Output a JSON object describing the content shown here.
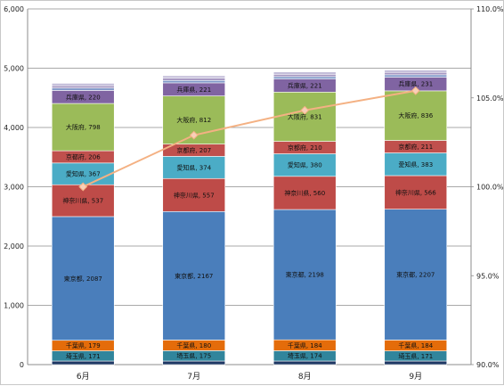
{
  "chart_data": {
    "type": "bar",
    "stacked": true,
    "categories": [
      "6月",
      "7月",
      "8月",
      "9月"
    ],
    "ylim": [
      0,
      6000
    ],
    "y_ticks": [
      "0",
      "1,000",
      "2,000",
      "3,000",
      "4,000",
      "5,000",
      "6,000"
    ],
    "y2lim": [
      90.0,
      110.0
    ],
    "y2_ticks": [
      "90.0%",
      "95.0%",
      "100.0%",
      "105.0%",
      "110.0%"
    ],
    "grid": true,
    "series": [
      {
        "name": "",
        "color": "#1f3864",
        "values": [
          60,
          60,
          60,
          60
        ],
        "labeled": false
      },
      {
        "name": "埼玉県",
        "color": "#31859c",
        "values": [
          171,
          175,
          174,
          171
        ],
        "labeled": true
      },
      {
        "name": "千葉県",
        "color": "#e46c0a",
        "values": [
          179,
          180,
          184,
          184
        ],
        "labeled": true
      },
      {
        "name": "東京都",
        "color": "#4a7ebb",
        "values": [
          2087,
          2167,
          2198,
          2207
        ],
        "labeled": true
      },
      {
        "name": "神奈川県",
        "color": "#be4b48",
        "values": [
          537,
          557,
          560,
          566
        ],
        "labeled": true
      },
      {
        "name": "愛知県",
        "color": "#4bacc6",
        "values": [
          367,
          374,
          380,
          383
        ],
        "labeled": true
      },
      {
        "name": "京都府",
        "color": "#c0504d",
        "values": [
          206,
          207,
          210,
          211
        ],
        "labeled": true
      },
      {
        "name": "大阪府",
        "color": "#9bbb59",
        "values": [
          798,
          812,
          831,
          836
        ],
        "labeled": true
      },
      {
        "name": "兵庫県",
        "color": "#8064a2",
        "values": [
          220,
          221,
          221,
          231
        ],
        "labeled": true
      },
      {
        "name": "",
        "color": "#7f98c8",
        "values": [
          40,
          40,
          40,
          40
        ],
        "labeled": false
      },
      {
        "name": "",
        "color": "#a798c2",
        "values": [
          40,
          40,
          40,
          40
        ],
        "labeled": false
      },
      {
        "name": "",
        "color": "#c3bdd9",
        "values": [
          40,
          40,
          40,
          40
        ],
        "labeled": false
      }
    ],
    "line_series": {
      "name": "",
      "color": "#f4b183",
      "marker_color": "#f8d0b8",
      "values": [
        100.0,
        102.9,
        104.3,
        105.4
      ]
    }
  }
}
